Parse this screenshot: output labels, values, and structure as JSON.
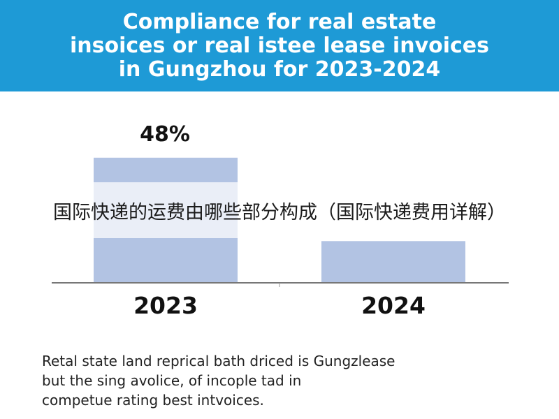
{
  "header": {
    "title_lines": [
      "Compliance for real estate",
      "insoices or real istee lease invoices",
      "in Gungzhou for 2023-2024"
    ]
  },
  "overlay": {
    "text": "国际快递的运费由哪些部分构成（国际快递费用详解）"
  },
  "caption": {
    "lines": [
      "Retal state land reprical bath driced is Gungzlease",
      "but the sing avolice, of incople tad in",
      "competue rating best intvoices."
    ]
  },
  "chart_data": {
    "type": "bar",
    "categories": [
      "2023",
      "2024"
    ],
    "values": [
      48,
      16
    ],
    "data_labels": [
      "48%",
      ""
    ],
    "ylim": [
      0,
      60
    ],
    "xlabel": "",
    "ylabel": "",
    "grid": false,
    "bar_color": "#b2c3e3"
  },
  "colors": {
    "header_bg": "#1e9ad6",
    "bar": "#b2c3e3"
  }
}
